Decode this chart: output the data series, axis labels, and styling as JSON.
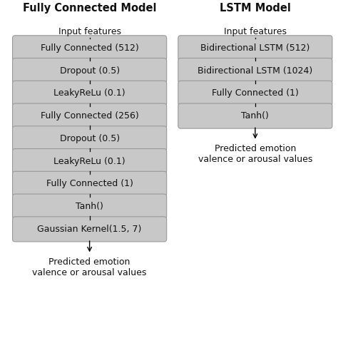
{
  "title_left": "Fully Connected Model",
  "title_right": "LSTM Model",
  "left_blocks": [
    "Fully Connected (512)",
    "Dropout (0.5)",
    "LeakyReLu (0.1)",
    "Fully Connected (256)",
    "Dropout (0.5)",
    "LeakyReLu (0.1)",
    "Fully Connected (1)",
    "Tanh()",
    "Gaussian Kernel(1.5, 7)"
  ],
  "right_blocks": [
    "Bidirectional LSTM (512)",
    "Bidirectional LSTM (1024)",
    "Fully Connected (1)",
    "Tanh()"
  ],
  "left_input": "Input features",
  "right_input": "Input features",
  "left_output": "Predicted emotion\nvalence or arousal values",
  "right_output": "Predicted emotion\nvalence or arousal values",
  "box_color": "#c8c8c8",
  "box_edge_color": "#999999",
  "text_color": "#111111",
  "background_color": "#ffffff",
  "title_fontsize": 10.5,
  "block_fontsize": 9.0,
  "label_fontsize": 9.0
}
